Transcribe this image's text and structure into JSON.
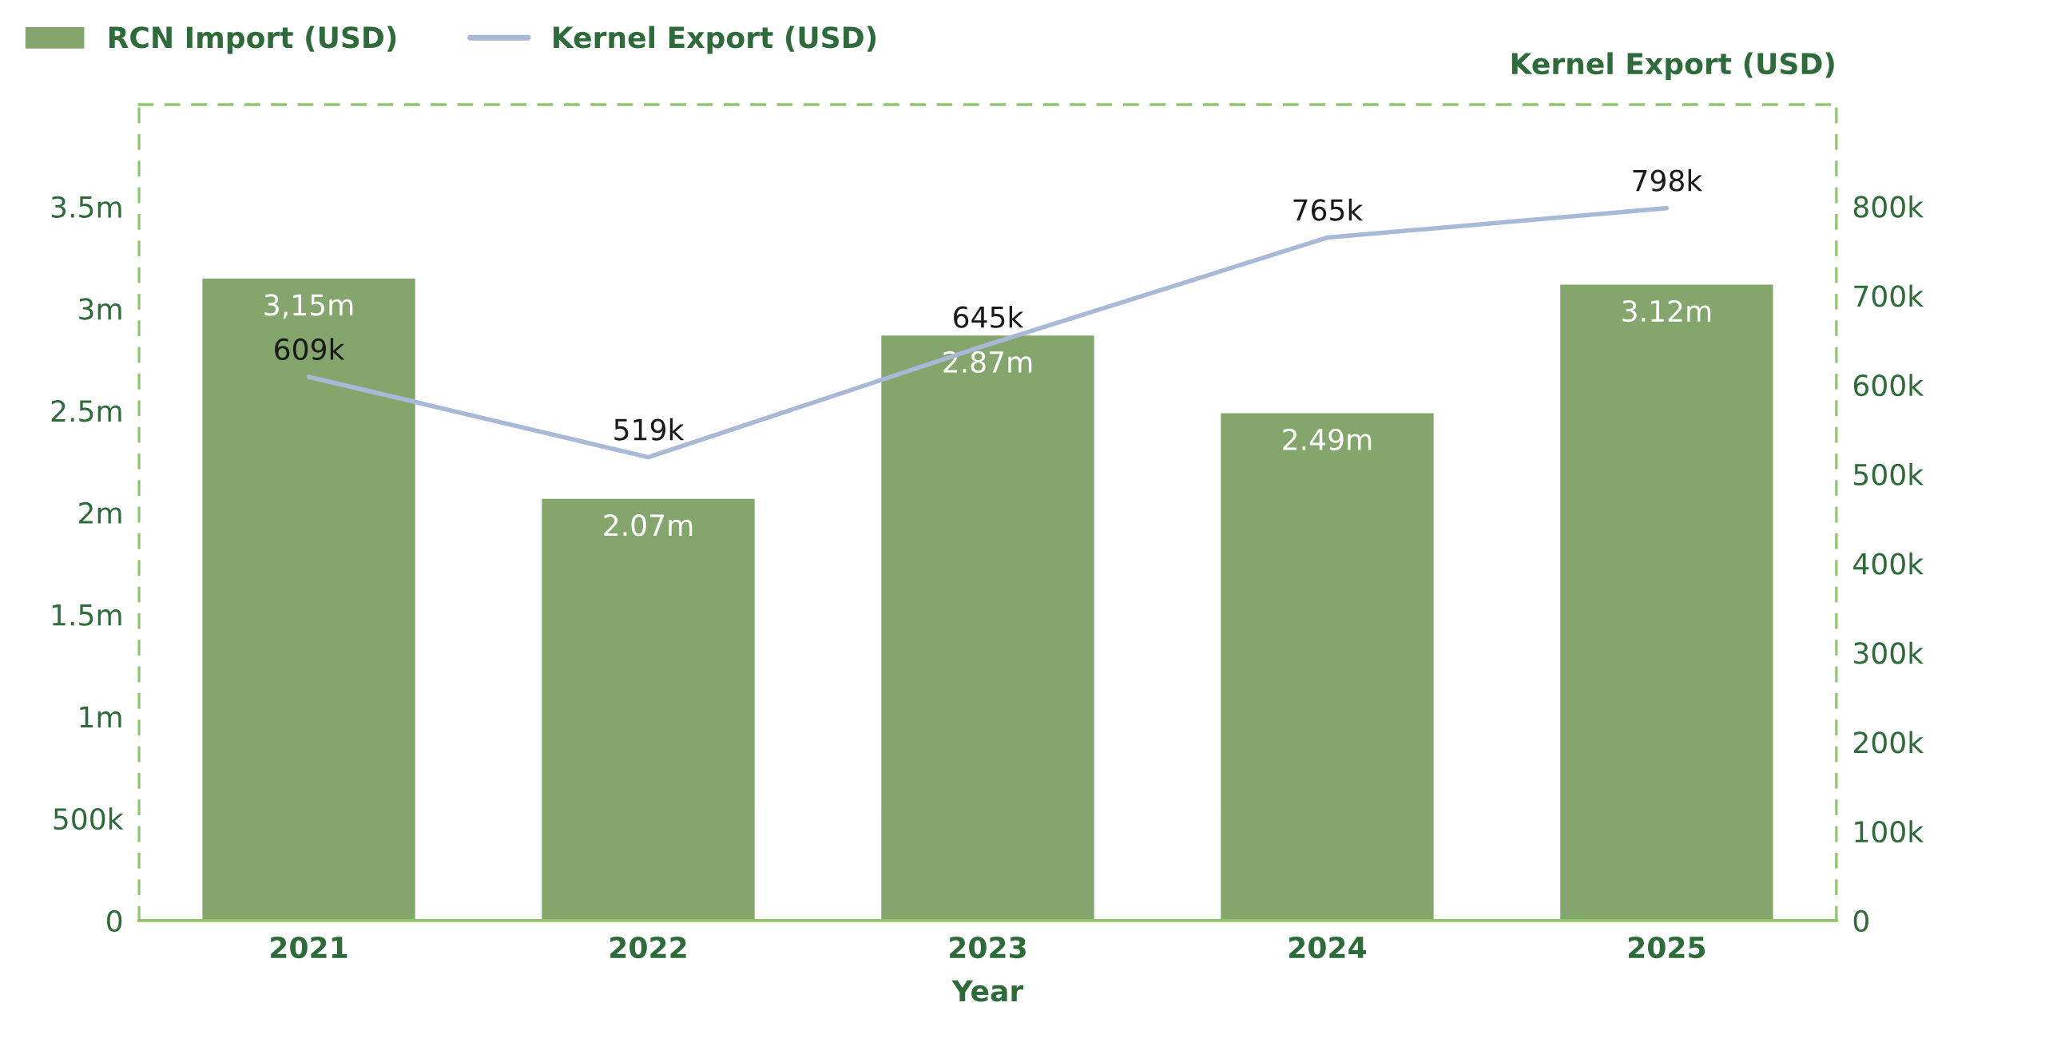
{
  "chart_data": {
    "type": "bar",
    "xlabel": "Year",
    "y2label": "Kernel Export (USD)",
    "categories": [
      "2021",
      "2022",
      "2023",
      "2024",
      "2025"
    ],
    "series": [
      {
        "name": "RCN Import (USD)",
        "color": "#84a66d",
        "values": [
          3150000,
          2070000,
          2870000,
          2490000,
          3120000
        ],
        "value_labels": [
          "3,15m",
          "2.07m",
          "2.87m",
          "2.49m",
          "3.12m"
        ]
      },
      {
        "name": "Kernel Export (USD)",
        "type": "line",
        "axis": "y2",
        "color": "#a7b9d6",
        "values": [
          609000,
          519000,
          645000,
          765000,
          798000
        ],
        "value_labels": [
          "609k",
          "519k",
          "645k",
          "765k",
          "798k"
        ]
      }
    ],
    "ylim": [
      0,
      4000000
    ],
    "yticks": [
      0,
      {
        "value": 500000,
        "label": "500k"
      },
      {
        "value": 1000000,
        "label": "1m"
      },
      {
        "value": 1500000,
        "label": "1.5m"
      },
      {
        "value": 2000000,
        "label": "2m"
      },
      {
        "value": 2500000,
        "label": "2.5m"
      },
      {
        "value": 3000000,
        "label": "3m"
      },
      {
        "value": 3500000,
        "label": "3.5m"
      }
    ],
    "y2lim": [
      0,
      914000
    ],
    "y2ticks": [
      0,
      {
        "value": 100000,
        "label": "100k"
      },
      {
        "value": 200000,
        "label": "200k"
      },
      {
        "value": 300000,
        "label": "300k"
      },
      {
        "value": 400000,
        "label": "400k"
      },
      {
        "value": 500000,
        "label": "500k"
      },
      {
        "value": 600000,
        "label": "600k"
      },
      {
        "value": 700000,
        "label": "700k"
      },
      {
        "value": 800000,
        "label": "800k"
      }
    ],
    "grid": false,
    "legend": "top left",
    "marker": "none",
    "line_style": "solid"
  }
}
